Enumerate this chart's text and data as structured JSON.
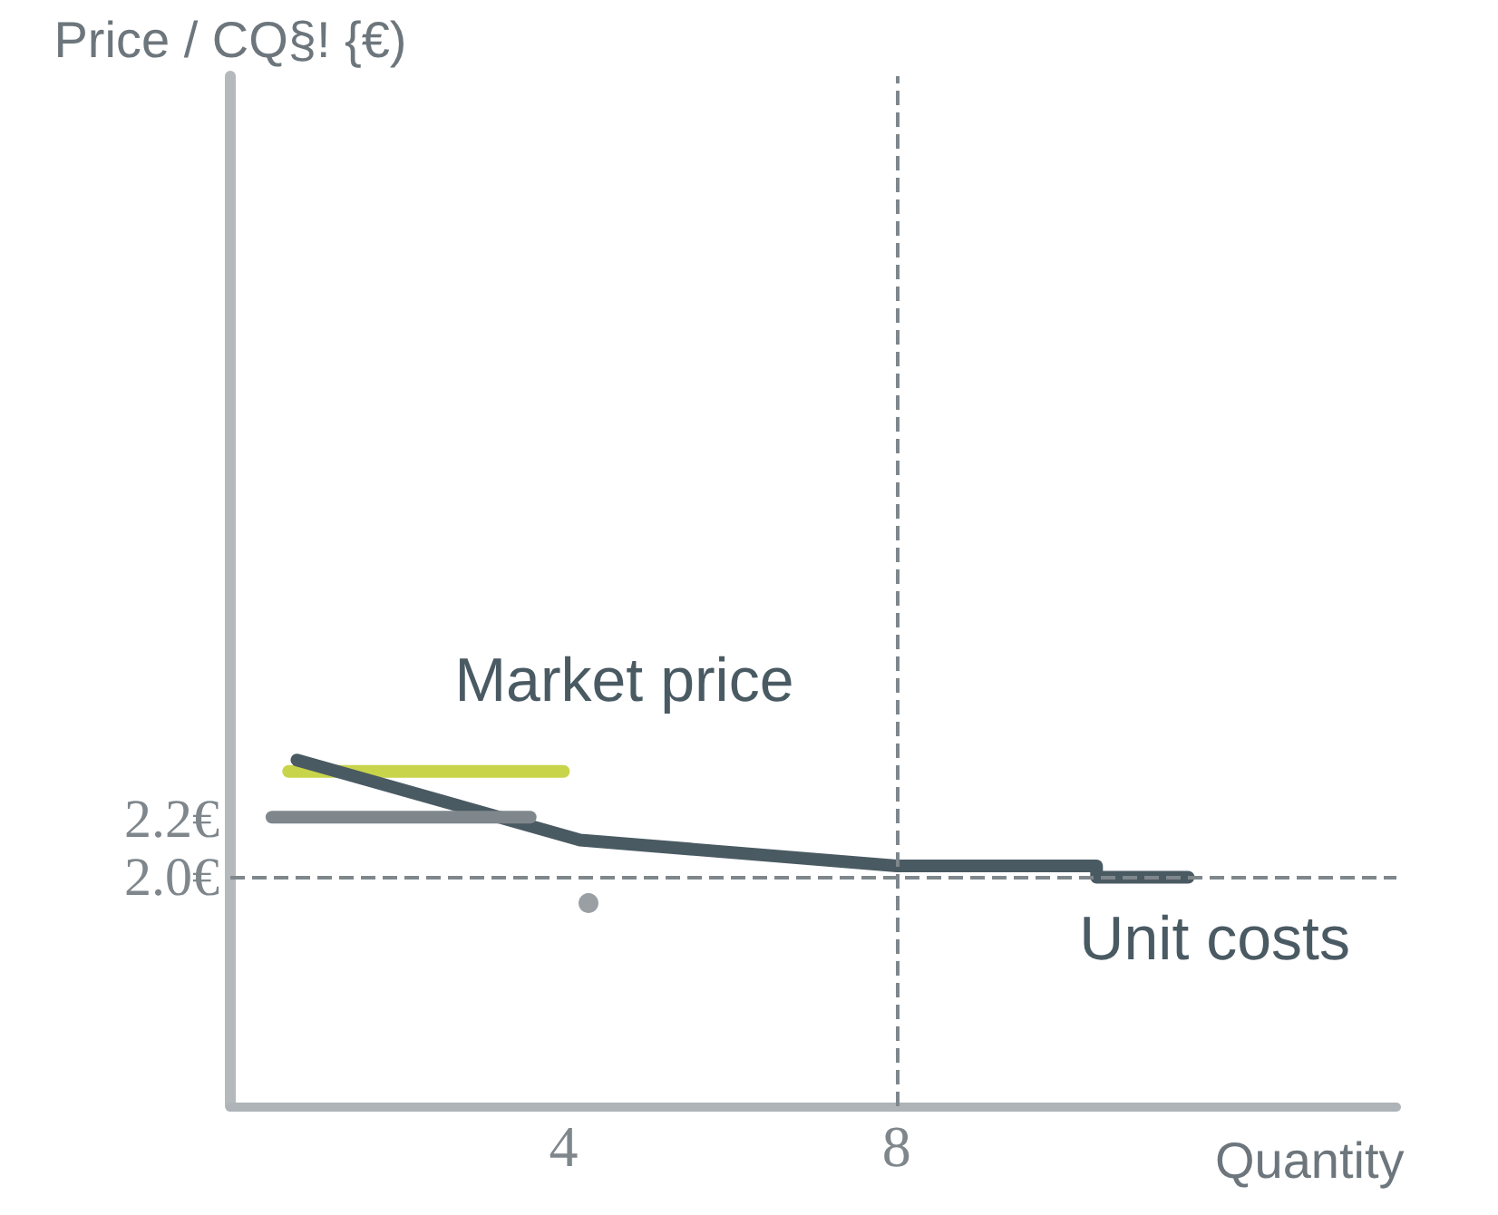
{
  "chart_data": {
    "type": "line",
    "ylabel": "Price / CQ§! {€)",
    "xlabel": "Quantity",
    "xlim": [
      0,
      14
    ],
    "xticks": [
      4,
      8
    ],
    "ylim": [
      1.2,
      4.8
    ],
    "yticks": [
      {
        "value": 2.0,
        "label": "2.0€"
      },
      {
        "value": 2.2,
        "label": "2.2€"
      }
    ],
    "series": [
      {
        "name": "Market price",
        "color": "#c8d44a",
        "x": [
          0.7,
          4
        ],
        "values": [
          2.37,
          2.37
        ]
      },
      {
        "name": "Unit costs",
        "color": "#4a5a63",
        "x": [
          0.8,
          4.2,
          8,
          10.4,
          10.4,
          11.5
        ],
        "values": [
          2.41,
          2.13,
          2.04,
          2.04,
          2.0,
          2.0
        ]
      },
      {
        "color": "#7f878c",
        "x": [
          0.5,
          3.6
        ],
        "values": [
          2.21,
          2.21
        ]
      },
      {
        "type": "scatter",
        "marker": "circle",
        "color": "#7f878c",
        "x": [
          4.3
        ],
        "values": [
          1.91
        ]
      }
    ],
    "ref_lines": [
      {
        "axis": "y",
        "value": 2.0,
        "line_style": "dashed",
        "color": "#7f878c"
      },
      {
        "axis": "x",
        "value": 8,
        "line_style": "dashed",
        "color": "#7f878c"
      }
    ],
    "grid": false,
    "legend": false
  }
}
